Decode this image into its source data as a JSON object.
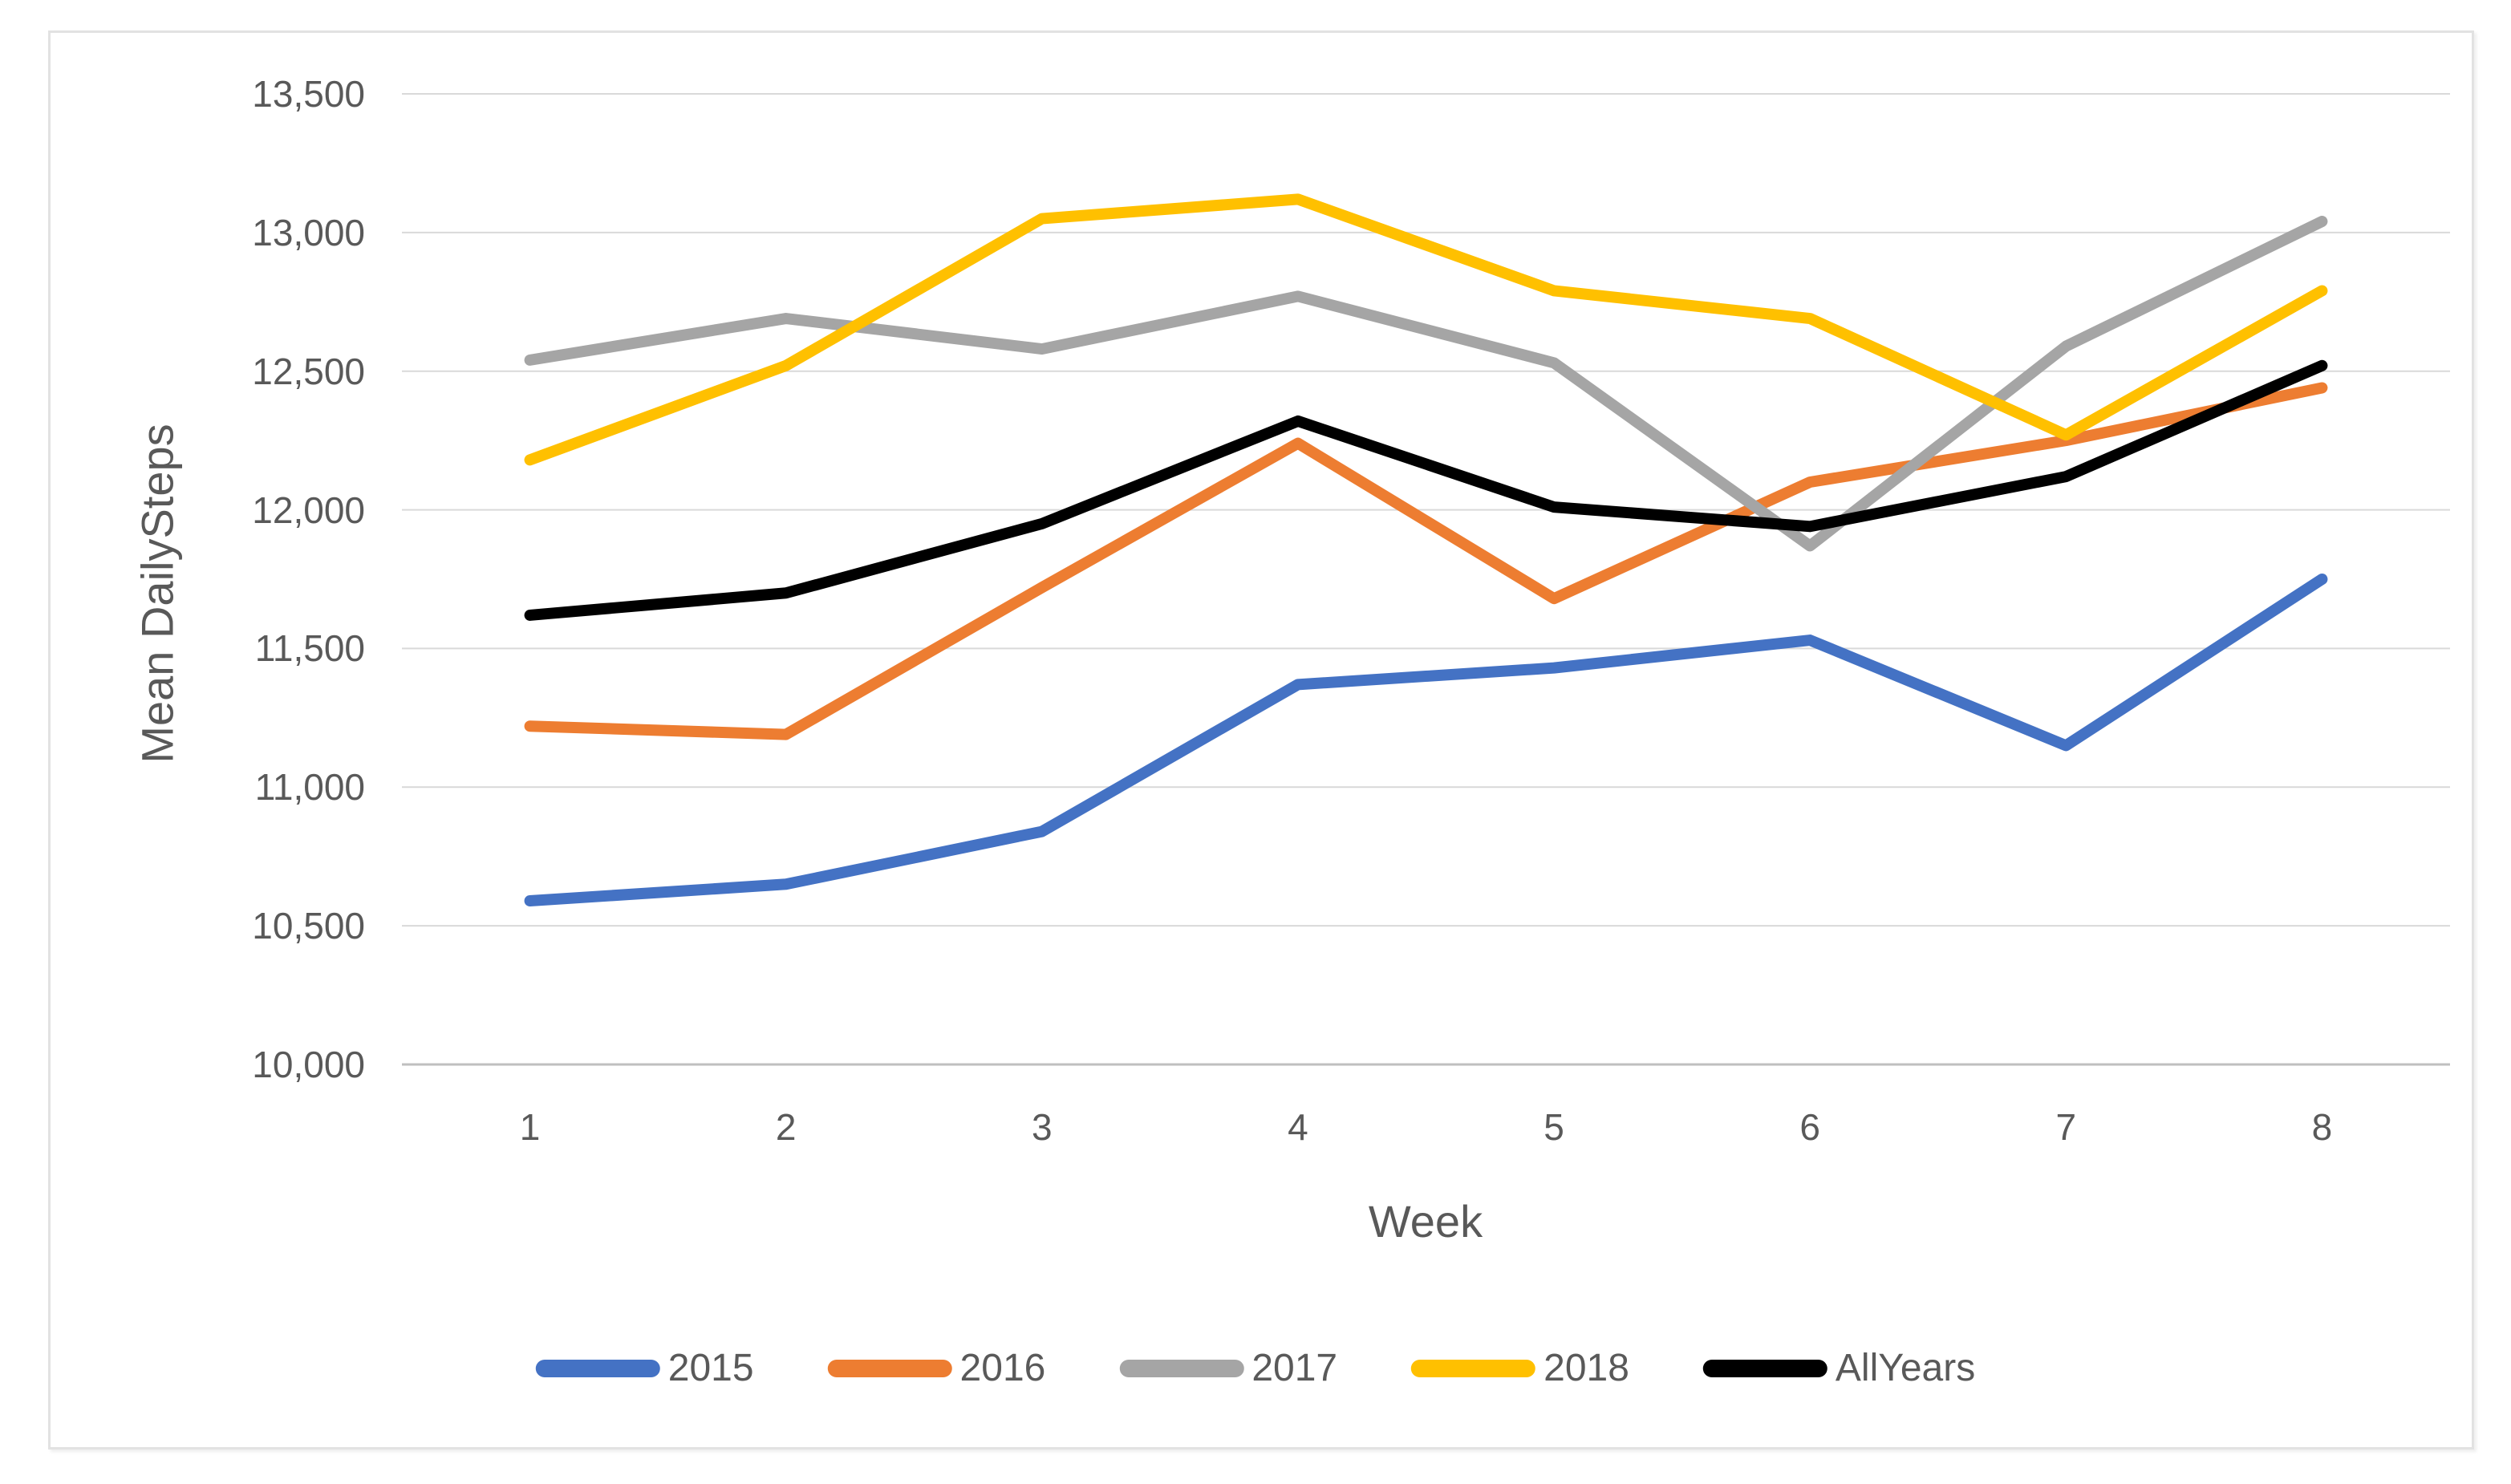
{
  "chart_data": {
    "type": "line",
    "title": "",
    "xlabel": "Week",
    "ylabel": "Mean DailySteps",
    "categories": [
      "1",
      "2",
      "3",
      "4",
      "5",
      "6",
      "7",
      "8"
    ],
    "series": [
      {
        "name": "2015",
        "color": "#4472C4",
        "values": [
          10590,
          10650,
          10840,
          11370,
          11430,
          11530,
          11150,
          11750
        ]
      },
      {
        "name": "2016",
        "color": "#ED7D31",
        "values": [
          11220,
          11190,
          11720,
          12240,
          11680,
          12100,
          12250,
          12440
        ]
      },
      {
        "name": "2017",
        "color": "#A5A5A5",
        "values": [
          12540,
          12690,
          12580,
          12770,
          12530,
          11870,
          12590,
          13040
        ]
      },
      {
        "name": "2018",
        "color": "#FFC000",
        "values": [
          12180,
          12520,
          13050,
          13120,
          12790,
          12690,
          12270,
          12790
        ]
      },
      {
        "name": "AllYears",
        "color": "#000000",
        "values": [
          11620,
          11700,
          11950,
          12320,
          12010,
          11940,
          12120,
          12520
        ]
      }
    ],
    "ylim": [
      10000,
      13500
    ],
    "ytick_step": 500,
    "ytick_labels": [
      "10,000",
      "10,500",
      "11,000",
      "11,500",
      "12,000",
      "12,500",
      "13,000",
      "13,500"
    ],
    "grid": true,
    "legend_position": "bottom"
  },
  "style": {
    "grid_color": "#D9D9D9",
    "axis_line_color": "#BFBFBF",
    "text_color": "#595959",
    "frame_border_color": "#E2E2E2",
    "background": "#FFFFFF"
  }
}
